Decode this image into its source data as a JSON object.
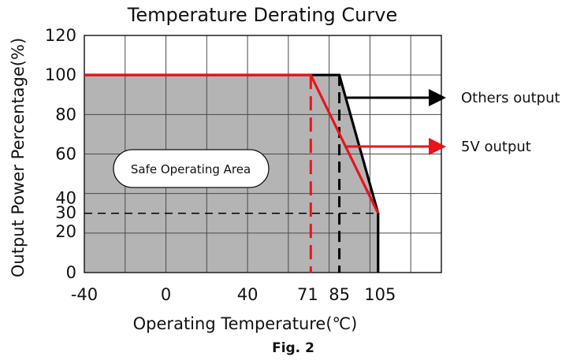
{
  "chart_data": {
    "type": "line",
    "title": "Temperature Derating Curve",
    "xlabel": "Operating Temperature(℃)",
    "ylabel": "Output Power Percentage(%)",
    "caption": "Fig. 2",
    "xlim": [
      -40,
      135
    ],
    "ylim": [
      0,
      120
    ],
    "x_ticks": [
      -40,
      0,
      40,
      71,
      85,
      105
    ],
    "y_ticks": [
      0,
      20,
      30,
      40,
      60,
      80,
      100,
      120
    ],
    "grid": true,
    "series": [
      {
        "name": "Others output",
        "color": "#000000",
        "x": [
          -40,
          85,
          104,
          104
        ],
        "y": [
          100,
          100,
          30,
          0
        ]
      },
      {
        "name": "5V output",
        "color": "#e8141c",
        "x": [
          -40,
          71,
          104
        ],
        "y": [
          100,
          100,
          30
        ]
      }
    ],
    "reference_lines": [
      {
        "orientation": "vertical",
        "x": 71,
        "color": "#e8141c",
        "style": "dashed"
      },
      {
        "orientation": "vertical",
        "x": 85,
        "color": "#000000",
        "style": "dashed"
      },
      {
        "orientation": "horizontal",
        "y": 30,
        "color": "#000000",
        "style": "dashed"
      }
    ],
    "region": {
      "label": "Safe Operating Area",
      "color": "#b4b4b4"
    }
  }
}
